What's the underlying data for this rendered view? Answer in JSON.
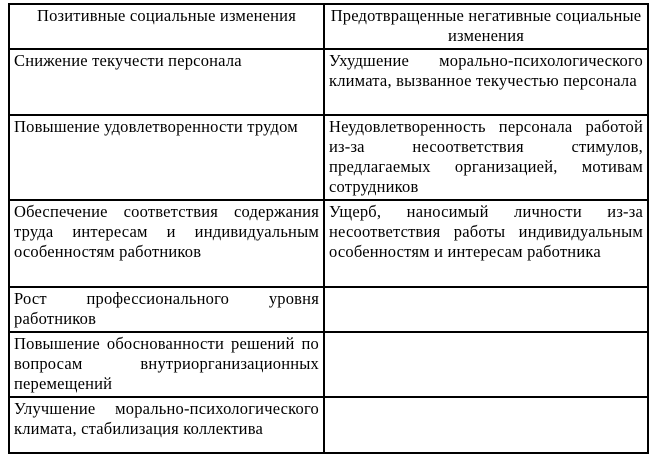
{
  "colors": {
    "background": "#ffffff",
    "text": "#000000",
    "border": "#000000"
  },
  "table": {
    "headers": [
      "Позитивные социальные изменения",
      "Предотвращенные негативные социальные изменения"
    ],
    "rows": [
      {
        "positive": "Снижение текучести персонала",
        "prevented": "Ухудшение морально-психологического климата, вызванное текучестью персонала"
      },
      {
        "positive": "Повышение удовлетворенности трудом",
        "prevented": "Неудовлетворенность персонала работой из-за несоответствия стимулов, предлагаемых организацией, мотивам сотрудников"
      },
      {
        "positive": "Обеспечение соответствия содержания труда интересам и индивидуальным особенностям работников",
        "prevented": "Ущерб, наносимый личности из-за несоответствия работы индивидуальным особенностям и интересам работника"
      },
      {
        "positive": "Рост профессионального уровня работников",
        "prevented": ""
      },
      {
        "positive": "Повышение обоснованности решений по вопросам внутриорганизационных перемещений",
        "prevented": ""
      },
      {
        "positive": "Улучшение морально-психологического климата, стабилизация коллектива",
        "prevented": ""
      }
    ]
  }
}
